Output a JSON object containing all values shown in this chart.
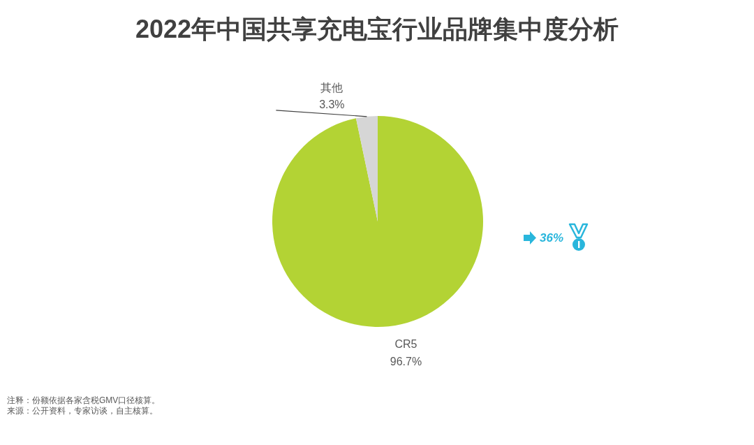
{
  "chart_data": {
    "type": "pie",
    "title": "2022年中国共享充电宝行业品牌集中度分析",
    "categories": [
      "CR5",
      "其他"
    ],
    "values": [
      96.7,
      3.3
    ],
    "colors": [
      "#b3d334",
      "#d6d6d6"
    ],
    "value_labels": [
      "96.7%",
      "3.3%"
    ],
    "annotations": [
      "36%",
      "注释：份额依据各家含税GMV口径核算。",
      "来源：公开资料，专家访谈，自主核算。"
    ]
  }
}
